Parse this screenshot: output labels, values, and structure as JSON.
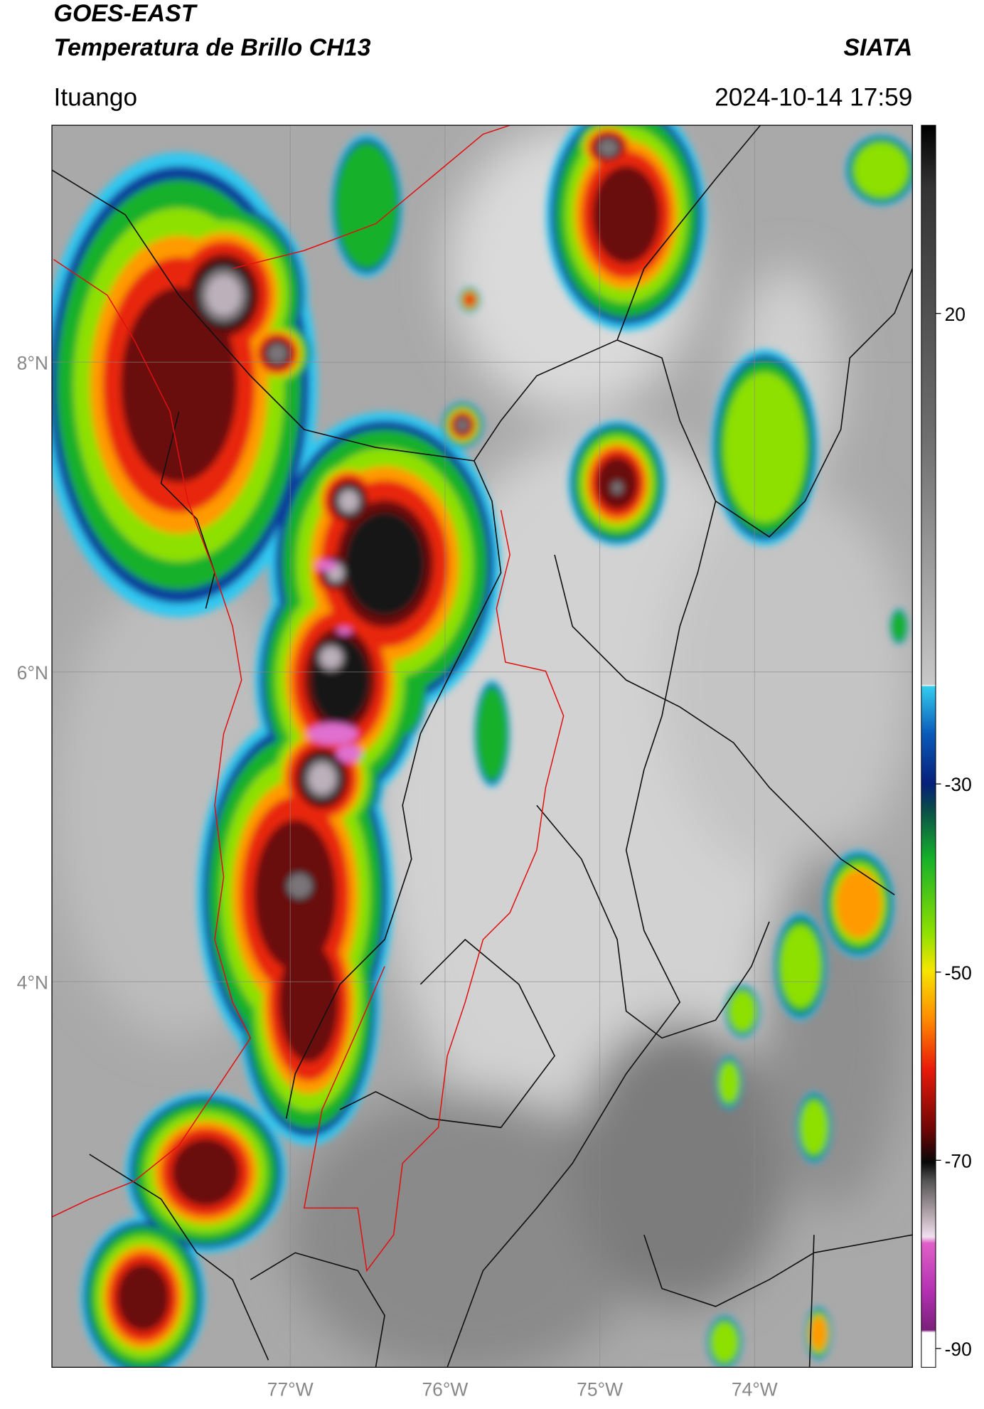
{
  "header": {
    "title": "GOES-EAST",
    "subtitle": "Temperatura de Brillo CH13",
    "agency": "SIATA",
    "location": "Ituango",
    "datetime": "2024-10-14 17:59"
  },
  "map": {
    "lat_range": [
      1.51,
      9.53
    ],
    "lon_range": [
      -78.54,
      -72.98
    ],
    "lat_ticks": [
      {
        "value": 8,
        "label": "8°N"
      },
      {
        "value": 6,
        "label": "6°N"
      },
      {
        "value": 4,
        "label": "4°N"
      }
    ],
    "lon_ticks": [
      {
        "value": -77,
        "label": "77°W"
      },
      {
        "value": -76,
        "label": "76°W"
      },
      {
        "value": -75,
        "label": "75°W"
      },
      {
        "value": -74,
        "label": "74°W"
      }
    ]
  },
  "colorbar": {
    "range": [
      -92,
      40
    ],
    "ticks": [
      20,
      -30,
      -50,
      -70,
      -90
    ]
  }
}
